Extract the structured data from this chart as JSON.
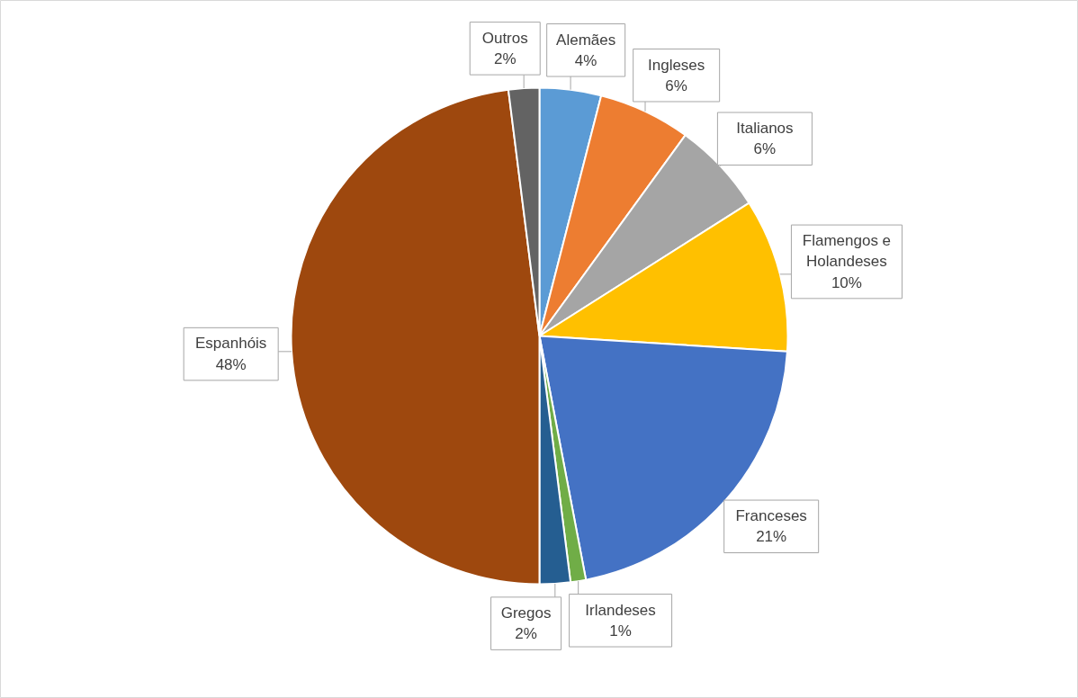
{
  "chart_data": {
    "type": "pie",
    "categories": [
      "Alemães",
      "Ingleses",
      "Italianos",
      "Flamengos e Holandeses",
      "Franceses",
      "Irlandeses",
      "Gregos",
      "Espanhóis",
      "Outros"
    ],
    "values": [
      4,
      6,
      6,
      10,
      21,
      1,
      2,
      48,
      2
    ],
    "value_labels": [
      "4%",
      "6%",
      "6%",
      "10%",
      "21%",
      "1%",
      "2%",
      "48%",
      "2%"
    ],
    "colors": [
      "#5b9bd5",
      "#ed7d31",
      "#a5a5a5",
      "#ffc000",
      "#4472c4",
      "#70ad47",
      "#255e91",
      "#9e480e",
      "#636363"
    ]
  }
}
